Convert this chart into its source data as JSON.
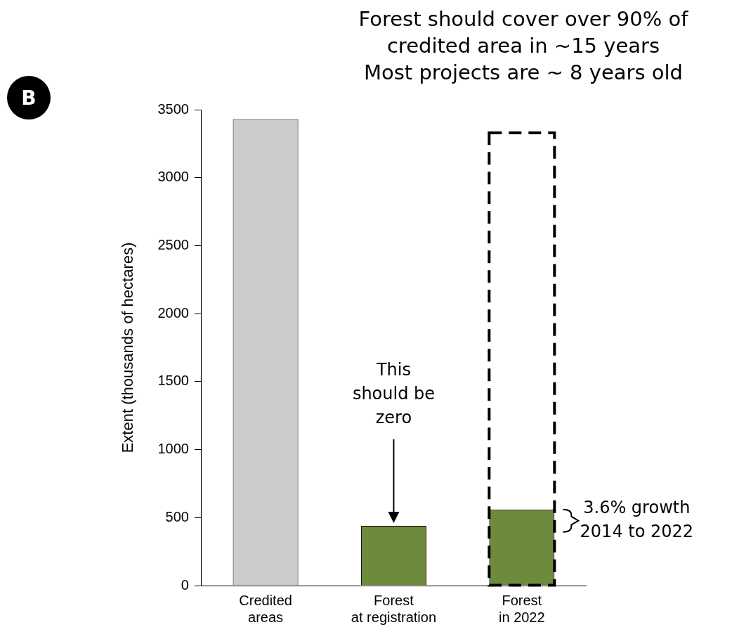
{
  "chart_data": {
    "type": "bar",
    "title": "Forest should cover over 90% of\ncredited area in ~15 years",
    "subtitle": "Most projects are ~ 8 years old",
    "ylabel": "Extent (thousands of hectares)",
    "categories": [
      "Credited\nareas",
      "Forest\nat registration",
      "Forest\nin 2022"
    ],
    "series": [
      {
        "colors": [
          "#cccccc",
          "#6e8b3d",
          "#6e8b3d"
        ],
        "values": [
          3430,
          440,
          560
        ]
      },
      {
        "color": "#000000",
        "line_style": "dashed",
        "values": [
          null,
          null,
          3330
        ]
      }
    ],
    "ylim": [
      0,
      3500
    ],
    "yticks": [
      0,
      500,
      1000,
      1500,
      2000,
      2500,
      3000,
      3500
    ],
    "grid": false,
    "legend": false,
    "annotations": [
      "B",
      "This\nshould be\nzero",
      "3.6% growth\n2014 to 2022"
    ]
  }
}
